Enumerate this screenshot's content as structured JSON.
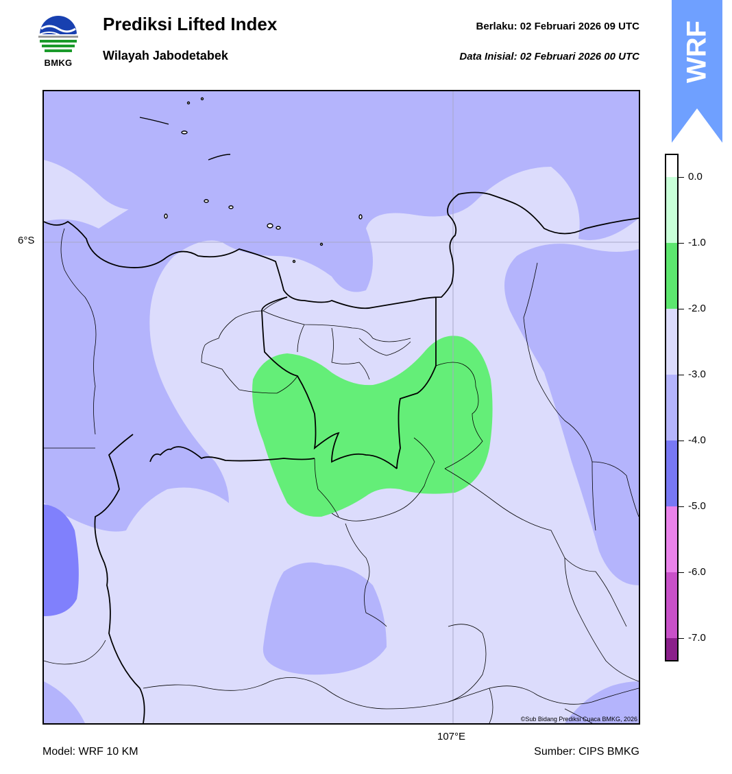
{
  "header": {
    "logo_text": "BMKG",
    "title": "Prediksi Lifted Index",
    "subtitle": "Wilayah Jabodetabek",
    "valid": "Berlaku:  02 Februari 2026 09 UTC",
    "initial": "Data Inisial:  02 Februari 2026 00 UTC"
  },
  "badge": {
    "text": "WRF",
    "color": "#6fa0ff"
  },
  "map": {
    "lat_label": "6°S",
    "lon_label": "107°E",
    "copyright": "©Sub Bidang Prediksi Cuaca BMKG, 2026",
    "colors": {
      "class_-3_-2": "#dcdcfc",
      "class_-4_-3": "#b4b4fc",
      "class_-5_-4": "#8080fc",
      "class_-2_-1": "#64ee78",
      "grid": "#a8a8c8",
      "border": "#000000"
    }
  },
  "colorbar": {
    "labels": [
      "0.0",
      "-1.0",
      "-2.0",
      "-3.0",
      "-4.0",
      "-5.0",
      "-6.0",
      "-7.0"
    ],
    "segments": [
      {
        "color": "#ffffff"
      },
      {
        "color": "#c8ffd8"
      },
      {
        "color": "#5ce66e"
      },
      {
        "color": "#dcdcfc"
      },
      {
        "color": "#b4b4fc"
      },
      {
        "color": "#7878f4"
      },
      {
        "color": "#ea82ea"
      },
      {
        "color": "#c850c8"
      },
      {
        "color": "#8a1e8a"
      }
    ]
  },
  "footer": {
    "model": "Model: WRF 10 KM",
    "source": "Sumber: CIPS BMKG"
  }
}
